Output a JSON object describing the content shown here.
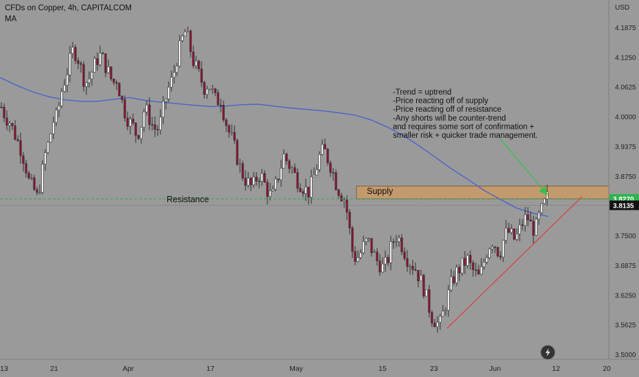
{
  "header": {
    "title": "CFDs on Copper, 4h, CAPITALCOM",
    "indicator": "MA"
  },
  "annotations": {
    "note_lines": [
      "-Trend = uptrend",
      "-Price reacting off of supply",
      "-Price reacting off of resistance",
      "-Any shorts will be counter-trend",
      "and requires some sort of confirmation +",
      "smaller risk + quicker trade management."
    ],
    "supply_label": "Supply",
    "resistance_label": "Resistance"
  },
  "colors": {
    "background": "#9a9a9a",
    "bull_candle": "#f2f2f2",
    "bear_candle": "#8b1030",
    "ma_line": "#4a63c9",
    "supply_zone": "#c39a6d",
    "resistance_line": "#2fa84a",
    "trendline": "#e03a3a",
    "arrow": "#34c24a",
    "price_badge_green": "#2fb34f",
    "price_badge_dark": "#111111"
  },
  "icons": {
    "lightning": "lightning-icon"
  },
  "chart_data": {
    "type": "candlestick",
    "symbol": "CFDs on Copper",
    "timeframe": "4h",
    "y_axis": {
      "unit": "USD",
      "ylim": [
        3.49,
        4.245
      ],
      "ticks": [
        "4.1875",
        "4.1250",
        "4.0625",
        "4.0000",
        "3.9375",
        "3.8750",
        "3.8270",
        "3.8135",
        "3.7500",
        "3.6875",
        "3.6250",
        "3.5625",
        "3.5000"
      ],
      "tick_values": [
        4.1875,
        4.125,
        4.0625,
        4.0,
        3.9375,
        3.875,
        3.75,
        3.6875,
        3.625,
        3.5625,
        3.5
      ]
    },
    "x_axis": {
      "ticks": [
        "13",
        "21",
        "Apr",
        "17",
        "May",
        "15",
        "23",
        "Jun",
        "12",
        "20"
      ]
    },
    "price_badges": [
      {
        "label": "3.8270",
        "value": 3.827,
        "style": "green"
      },
      {
        "label": "3.8135",
        "value": 3.8135,
        "style": "dark"
      }
    ],
    "levels": {
      "resistance": 3.827,
      "supply_zone": [
        3.827,
        3.854
      ]
    },
    "trendline": {
      "from_price": 3.555,
      "to_price": 3.832
    },
    "ma": [
      4.082,
      4.066,
      4.052,
      4.042,
      4.035,
      4.032,
      4.032,
      4.036,
      4.04,
      4.034,
      4.03,
      4.027,
      4.024,
      4.021,
      4.022,
      4.025,
      4.026,
      4.022,
      4.018,
      4.015,
      4.012,
      4.008,
      4.003,
      3.993,
      3.978,
      3.96,
      3.938,
      3.914,
      3.89,
      3.868,
      3.845,
      3.826,
      3.808,
      3.797,
      3.79
    ],
    "close_path": [
      4.02,
      4.0,
      3.99,
      3.97,
      3.95,
      3.93,
      3.9,
      3.86,
      3.85,
      3.83,
      3.87,
      3.92,
      3.95,
      3.99,
      4.0,
      4.05,
      4.08,
      4.11,
      4.14,
      4.13,
      4.1,
      4.07,
      4.08,
      4.1,
      4.12,
      4.13,
      4.11,
      4.09,
      4.07,
      4.08,
      4.04,
      4.01,
      3.99,
      3.98,
      3.96,
      3.98,
      4.02,
      4.0,
      3.98,
      3.97,
      3.99,
      4.03,
      4.06,
      4.08,
      4.12,
      4.15,
      4.18,
      4.16,
      4.12,
      4.1,
      4.08,
      4.06,
      4.07,
      4.05,
      4.03,
      4.04,
      4.0,
      3.97,
      3.95,
      3.92,
      3.89,
      3.87,
      3.86,
      3.85,
      3.87,
      3.88,
      3.86,
      3.84,
      3.83,
      3.86,
      3.89,
      3.92,
      3.9,
      3.89,
      3.87,
      3.86,
      3.85,
      3.84,
      3.86,
      3.89,
      3.92,
      3.93,
      3.91,
      3.89,
      3.86,
      3.84,
      3.83,
      3.79,
      3.72,
      3.7,
      3.71,
      3.73,
      3.74,
      3.72,
      3.7,
      3.69,
      3.68,
      3.7,
      3.73,
      3.75,
      3.74,
      3.72,
      3.7,
      3.69,
      3.68,
      3.66,
      3.64,
      3.61,
      3.58,
      3.57,
      3.56,
      3.59,
      3.62,
      3.65,
      3.67,
      3.68,
      3.69,
      3.7,
      3.68,
      3.67,
      3.66,
      3.69,
      3.72,
      3.74,
      3.73,
      3.71,
      3.74,
      3.76,
      3.75,
      3.74,
      3.76,
      3.78,
      3.79,
      3.77,
      3.76,
      3.79,
      3.81,
      3.83
    ]
  }
}
